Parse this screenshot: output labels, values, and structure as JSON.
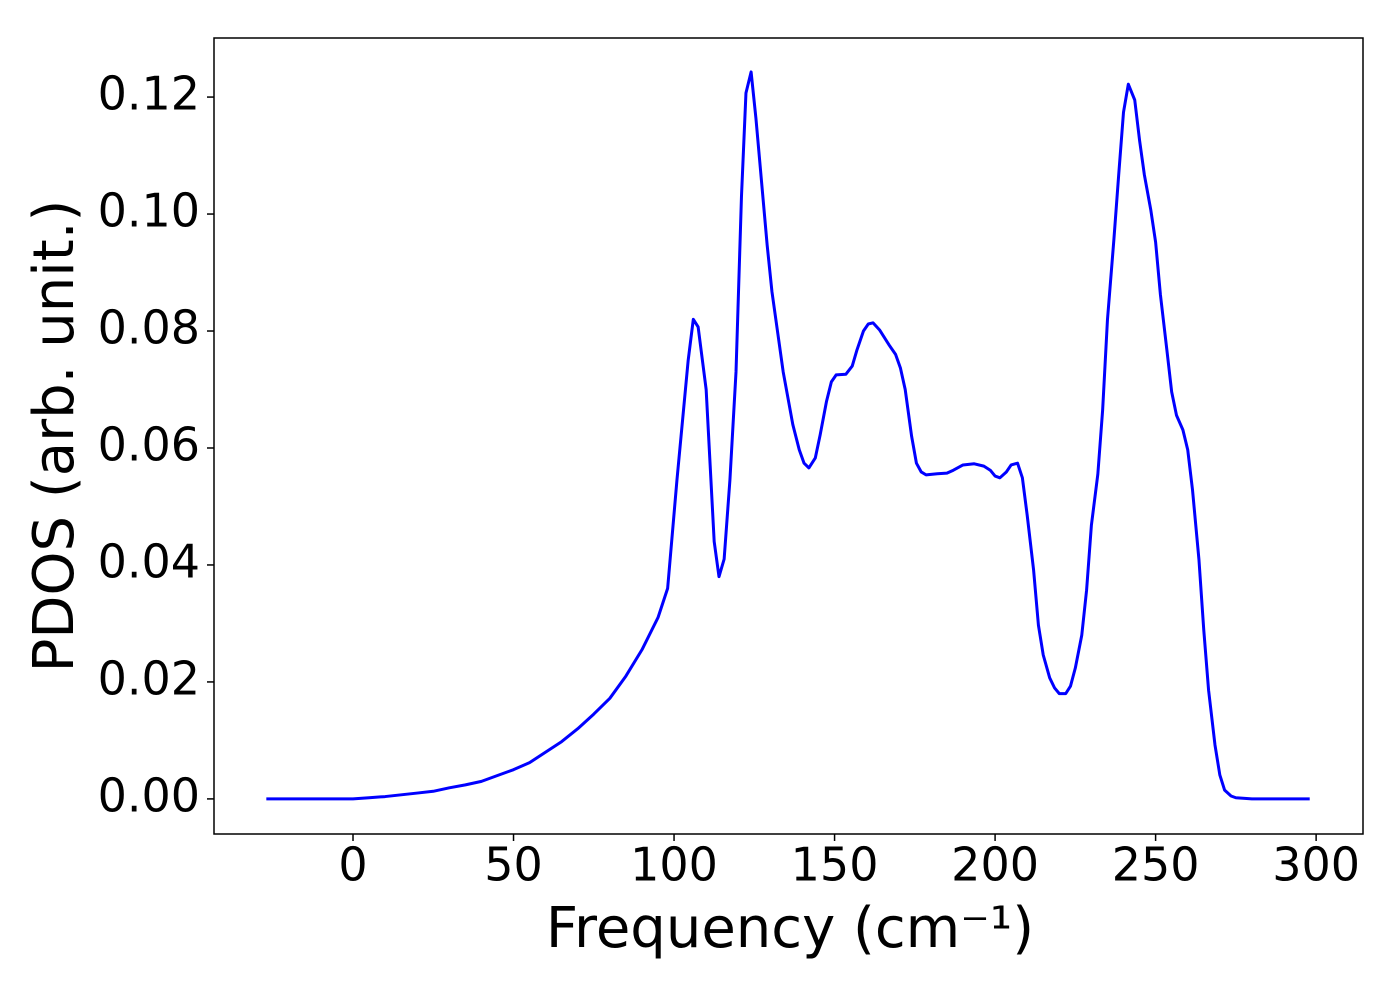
{
  "chart_data": {
    "type": "line",
    "xlabel": "Frequency (cm⁻¹)",
    "ylabel": "PDOS (arb. unit.)",
    "xlim": [
      -43.3,
      314.6
    ],
    "ylim": [
      -0.006,
      0.1301
    ],
    "xticks": [
      0,
      50,
      100,
      150,
      200,
      250,
      300
    ],
    "yticks": [
      {
        "value": 0,
        "label": "0.00"
      },
      {
        "value": 0.02,
        "label": "0.02"
      },
      {
        "value": 0.04,
        "label": "0.04"
      },
      {
        "value": 0.06,
        "label": "0.06"
      },
      {
        "value": 0.08,
        "label": "0.08"
      },
      {
        "value": 0.1,
        "label": "0.10"
      },
      {
        "value": 0.12,
        "label": "0.12"
      }
    ],
    "x": [
      -27,
      0,
      5,
      10,
      15,
      20,
      25,
      30,
      35,
      40,
      45,
      50,
      55,
      60,
      65,
      70,
      75,
      80,
      85,
      90,
      95,
      98,
      100.9,
      104.4,
      106,
      107.5,
      110,
      112.5,
      114,
      115.6,
      117.4,
      119.3,
      121,
      122.4,
      124,
      125.5,
      129,
      130.5,
      134,
      137,
      139,
      140.5,
      142,
      144,
      145.5,
      147.5,
      149,
      150.5,
      153.5,
      155.5,
      157,
      159,
      160.5,
      162,
      164,
      167,
      169,
      170.5,
      172,
      174,
      175.5,
      177,
      178.5,
      182,
      185,
      187,
      190,
      193.5,
      196.5,
      198.5,
      200,
      201.5,
      203.5,
      205,
      207,
      208.5,
      210,
      212,
      213.5,
      215,
      217,
      218.5,
      220,
      222,
      223.5,
      225,
      227,
      228.5,
      230,
      232,
      233.5,
      235,
      237,
      238.5,
      240,
      241.5,
      243.5,
      245,
      246.5,
      248.5,
      250,
      251.5,
      253.5,
      255,
      256.5,
      258.5,
      260,
      261.5,
      263.5,
      265,
      266.5,
      268.5,
      270,
      271.5,
      273.5,
      275,
      280,
      298
    ],
    "series": [
      {
        "color": "#0000ff",
        "values": [
          0,
          0,
          0.0002,
          0.0004,
          0.0007,
          0.001,
          0.0013,
          0.0019,
          0.0024,
          0.003,
          0.004,
          0.005,
          0.0062,
          0.008,
          0.0098,
          0.012,
          0.0145,
          0.0172,
          0.021,
          0.0255,
          0.031,
          0.036,
          0.0545,
          0.075,
          0.082,
          0.0807,
          0.07,
          0.044,
          0.038,
          0.041,
          0.0545,
          0.073,
          0.103,
          0.1207,
          0.1243,
          0.1164,
          0.0947,
          0.0867,
          0.073,
          0.064,
          0.0597,
          0.0574,
          0.0566,
          0.0583,
          0.0622,
          0.068,
          0.0713,
          0.0725,
          0.0726,
          0.074,
          0.0768,
          0.08,
          0.0812,
          0.0814,
          0.0802,
          0.0776,
          0.076,
          0.0737,
          0.07,
          0.062,
          0.0574,
          0.0559,
          0.0554,
          0.0556,
          0.0557,
          0.0562,
          0.0571,
          0.0573,
          0.0569,
          0.0562,
          0.0552,
          0.0549,
          0.0559,
          0.0571,
          0.0574,
          0.0549,
          0.0485,
          0.0391,
          0.0297,
          0.0246,
          0.0207,
          0.019,
          0.018,
          0.018,
          0.0193,
          0.0224,
          0.028,
          0.0357,
          0.0468,
          0.0555,
          0.0665,
          0.0819,
          0.0956,
          0.1067,
          0.1174,
          0.1222,
          0.1195,
          0.1126,
          0.1067,
          0.1007,
          0.0952,
          0.0862,
          0.0768,
          0.0696,
          0.0656,
          0.0631,
          0.0597,
          0.0528,
          0.0409,
          0.0289,
          0.0186,
          0.0092,
          0.0041,
          0.0015,
          0.0005,
          0.0002,
          0,
          0
        ]
      }
    ]
  }
}
